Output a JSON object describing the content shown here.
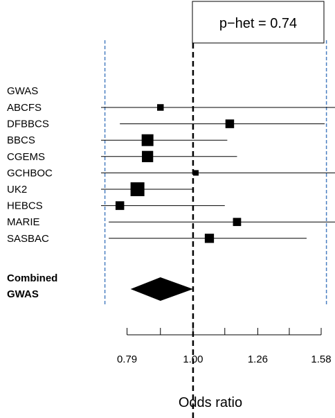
{
  "chart_data": {
    "type": "forest",
    "header": "GWAS",
    "pooled_label_lines": [
      "Combined",
      "GWAS"
    ],
    "p_het_label": "p−het = 0.74",
    "xlabel": "Odds ratio",
    "x_scale": "log",
    "xlim": [
      0.72,
      1.66
    ],
    "ticks": [
      0.79,
      0.89,
      1.0,
      1.12,
      1.26,
      1.41,
      1.58
    ],
    "tick_labels": [
      "0.79",
      "",
      "1.00",
      "",
      "1.26",
      "",
      "1.58"
    ],
    "reference_line": 1.0,
    "pooled_interval_lines": [
      0.73,
      1.61
    ],
    "studies": [
      {
        "name": "ABCFS",
        "or": 0.89,
        "lower": 0.72,
        "upper": 1.66,
        "weight": 0.3
      },
      {
        "name": "DFBBCS",
        "or": 1.14,
        "lower": 0.77,
        "upper": 1.6,
        "weight": 0.5
      },
      {
        "name": "BBCS",
        "or": 0.85,
        "lower": 0.72,
        "upper": 1.13,
        "weight": 0.8
      },
      {
        "name": "CGEMS",
        "or": 0.85,
        "lower": 0.72,
        "upper": 1.17,
        "weight": 0.75
      },
      {
        "name": "GCHBOC",
        "or": 1.01,
        "lower": 0.72,
        "upper": 1.66,
        "weight": 0.2
      },
      {
        "name": "UK2",
        "or": 0.82,
        "lower": 0.72,
        "upper": 1.0,
        "weight": 1.0
      },
      {
        "name": "HEBCS",
        "or": 0.77,
        "lower": 0.72,
        "upper": 1.12,
        "weight": 0.5
      },
      {
        "name": "MARIE",
        "or": 1.17,
        "lower": 0.74,
        "upper": 1.66,
        "weight": 0.45
      },
      {
        "name": "SASBAC",
        "or": 1.06,
        "lower": 0.74,
        "upper": 1.5,
        "weight": 0.55
      }
    ],
    "pooled": {
      "or": 0.89,
      "lower": 0.8,
      "upper": 1.0
    }
  }
}
